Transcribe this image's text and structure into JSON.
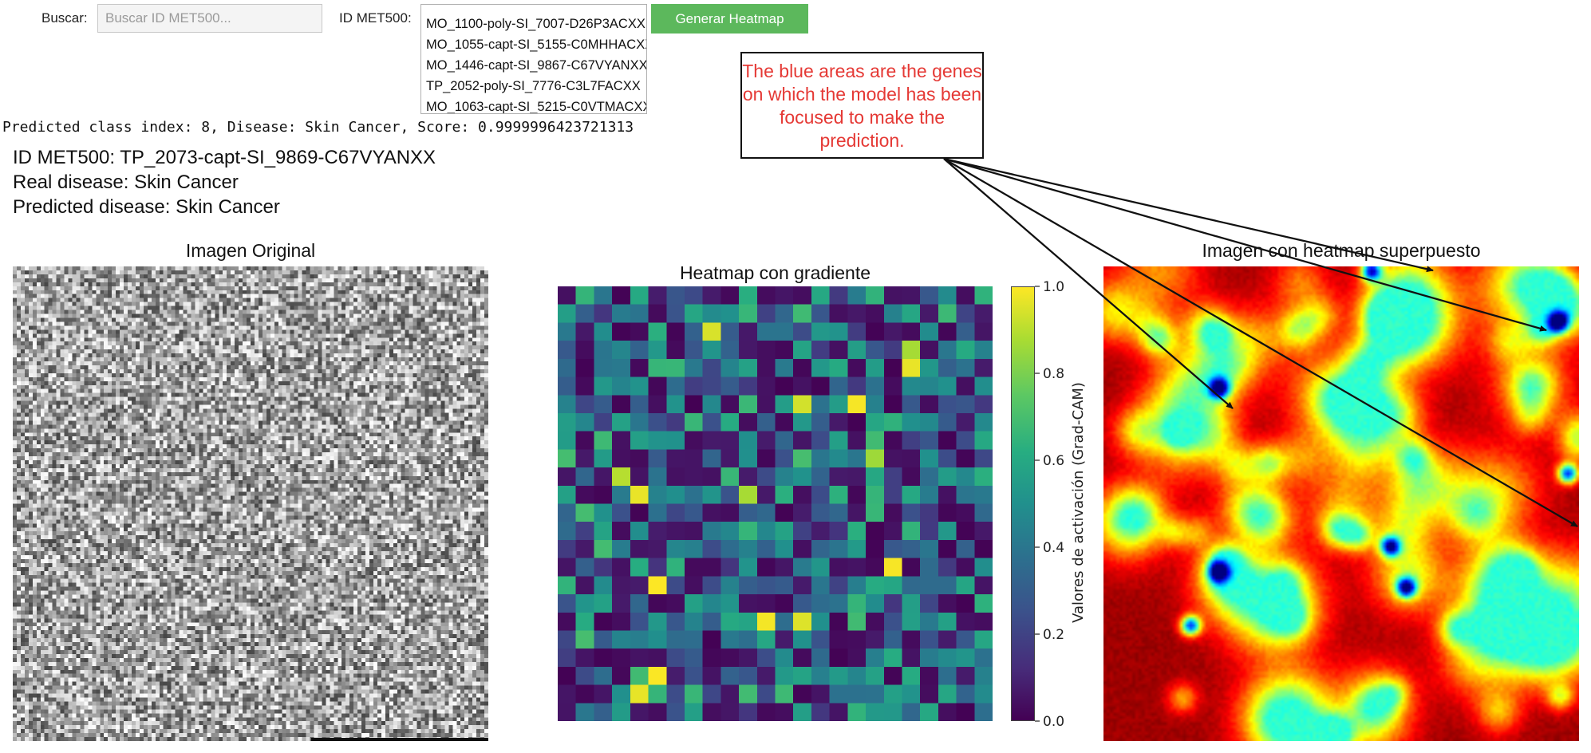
{
  "search": {
    "label": "Buscar:",
    "placeholder": "Buscar ID MET500..."
  },
  "select": {
    "label": "ID MET500:",
    "options": [
      "MO_1100-poly-SI_7007-D26P3ACXX",
      "MO_1055-capt-SI_5155-C0MHHACXX",
      "MO_1446-capt-SI_9867-C67VYANXX",
      "TP_2052-poly-SI_7776-C3L7FACXX",
      "MO_1063-capt-SI_5215-C0VTMACXX"
    ]
  },
  "generate_button": "Generar Heatmap",
  "prediction_line": "Predicted class index: 8, Disease: Skin Cancer, Score: 0.9999996423721313",
  "summary": {
    "id_line": "ID MET500: TP_2073-capt-SI_9869-C67VYANXX",
    "real_line": "Real disease: Skin Cancer",
    "pred_line": "Predicted disease: Skin Cancer"
  },
  "panels": {
    "original_title": "Imagen Original",
    "heatmap_title": "Heatmap con gradiente",
    "overlay_title": "Imagen con heatmap superpuesto"
  },
  "colorbar": {
    "label": "Valores de activación (Grad-CAM)",
    "ticks": [
      "0.0",
      "0.2",
      "0.4",
      "0.6",
      "0.8",
      "1.0"
    ]
  },
  "annotation": "The blue areas are the genes on which the model has been focused to make the prediction.",
  "colors": {
    "button": "#5cb85c",
    "annotation_text": "#e53935"
  }
}
